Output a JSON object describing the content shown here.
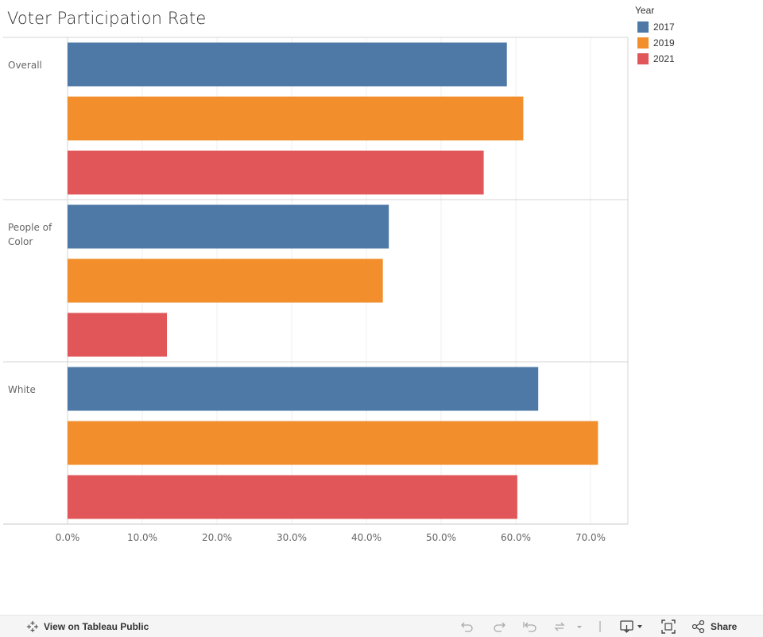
{
  "chart_data": {
    "type": "bar",
    "orientation": "horizontal",
    "title": "Voter Participation Rate",
    "categories": [
      "Overall",
      "People of Color",
      "White"
    ],
    "category_lines": [
      [
        "Overall"
      ],
      [
        "People of",
        "Color"
      ],
      [
        "White"
      ]
    ],
    "series": [
      {
        "name": "2017",
        "color": "#4e79a7",
        "values": [
          58.8,
          43.0,
          63.0
        ]
      },
      {
        "name": "2019",
        "color": "#f28e2b",
        "values": [
          61.0,
          42.2,
          71.0
        ]
      },
      {
        "name": "2021",
        "color": "#e15759",
        "values": [
          55.7,
          13.3,
          60.2
        ]
      }
    ],
    "xlim": [
      0,
      75
    ],
    "xticks": [
      0,
      10,
      20,
      30,
      40,
      50,
      60,
      70
    ],
    "xtick_labels": [
      "0.0%",
      "10.0%",
      "20.0%",
      "30.0%",
      "40.0%",
      "50.0%",
      "60.0%",
      "70.0%"
    ],
    "legend_title": "Year"
  },
  "toolbar": {
    "view_label": "View on Tableau Public",
    "share_label": "Share",
    "icons": [
      "tableau-logo-icon",
      "undo-icon",
      "redo-icon",
      "revert-icon",
      "refresh-icon",
      "download-icon",
      "fullscreen-icon",
      "share-icon"
    ]
  }
}
